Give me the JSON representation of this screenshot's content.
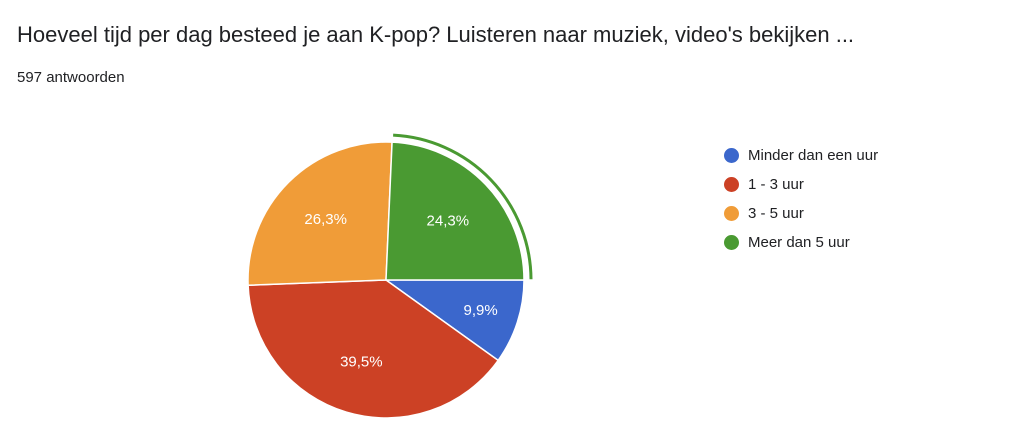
{
  "question": {
    "title": "Hoeveel tijd per dag besteed je aan K-pop? Luisteren naar muziek, video's bekijken ...",
    "response_count": "597 antwoorden"
  },
  "chart_data": {
    "type": "pie",
    "title": "",
    "legend_position": "right",
    "slices": [
      {
        "name": "Minder dan een uur",
        "value": 9.9,
        "label": "9,9%",
        "color": "#3b67cc"
      },
      {
        "name": "1 - 3 uur",
        "value": 39.5,
        "label": "39,5%",
        "color": "#cc4125"
      },
      {
        "name": "3 - 5 uur",
        "value": 26.3,
        "label": "26,3%",
        "color": "#f09c38"
      },
      {
        "name": "Meer dan 5 uur",
        "value": 24.3,
        "label": "24,3%",
        "color": "#4a9a32"
      }
    ],
    "highlighted_slice": "Meer dan 5 uur"
  }
}
